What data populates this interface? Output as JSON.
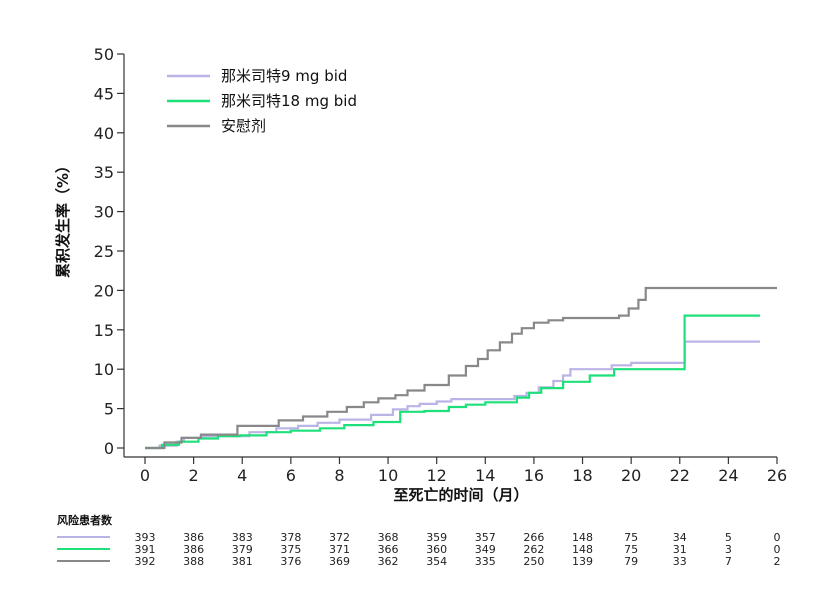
{
  "chart_data": {
    "type": "line",
    "step": true,
    "xlabel": "至死亡的时间（月）",
    "ylabel": "累积发生率（%）",
    "xlim": [
      0,
      26
    ],
    "ylim": [
      0,
      50
    ],
    "xticks": [
      0,
      2,
      4,
      6,
      8,
      10,
      12,
      14,
      16,
      18,
      20,
      22,
      24,
      26
    ],
    "yticks": [
      0,
      5,
      10,
      15,
      20,
      25,
      30,
      35,
      40,
      45,
      50
    ],
    "grid": false,
    "legend_position": "top-left",
    "series": [
      {
        "name": "那米司特9 mg bid",
        "color": "#b9b4e6",
        "x": [
          0,
          0.6,
          1.3,
          1.6,
          2.4,
          3.8,
          4.3,
          5.4,
          6.3,
          7.1,
          8.0,
          9.3,
          10.2,
          10.8,
          11.3,
          12.0,
          12.6,
          13.2,
          14.0,
          14.6,
          15.2,
          15.7,
          16.2,
          16.8,
          17.2,
          17.5,
          18.5,
          19.2,
          20.0,
          21.0,
          22.0,
          22.2,
          25.3
        ],
        "y": [
          0,
          0.3,
          0.8,
          1.3,
          1.5,
          1.5,
          2.0,
          2.5,
          2.8,
          3.2,
          3.6,
          4.2,
          4.9,
          5.3,
          5.6,
          5.9,
          6.2,
          6.2,
          6.2,
          6.2,
          6.6,
          7.0,
          7.7,
          8.5,
          9.2,
          10.0,
          10.0,
          10.5,
          10.8,
          10.8,
          10.8,
          13.5,
          13.5
        ]
      },
      {
        "name": "那米司特18 mg bid",
        "color": "#1ee07a",
        "x": [
          0,
          0.7,
          1.4,
          2.2,
          3.0,
          3.9,
          5.0,
          6.0,
          7.2,
          8.2,
          9.4,
          10.5,
          11.5,
          12.5,
          13.2,
          14.0,
          15.3,
          15.8,
          16.3,
          17.2,
          18.3,
          19.3,
          20.0,
          22.2,
          25.3
        ],
        "y": [
          0,
          0.4,
          0.8,
          1.2,
          1.5,
          1.6,
          2.0,
          2.2,
          2.5,
          2.9,
          3.3,
          4.6,
          4.7,
          5.2,
          5.5,
          5.8,
          6.4,
          7.0,
          7.6,
          8.4,
          9.2,
          10.0,
          10.0,
          16.8,
          16.8
        ]
      },
      {
        "name": "安慰剂",
        "color": "#888888",
        "x": [
          0,
          0.8,
          1.5,
          2.3,
          3.8,
          4.2,
          5.5,
          6.5,
          7.5,
          8.3,
          9.0,
          9.6,
          10.3,
          10.8,
          11.5,
          12.5,
          13.2,
          13.7,
          14.1,
          14.6,
          15.1,
          15.5,
          16.0,
          16.6,
          17.2,
          18.2,
          19.5,
          19.9,
          20.3,
          20.6,
          22.0,
          26.0
        ],
        "y": [
          0,
          0.7,
          1.3,
          1.7,
          2.8,
          2.8,
          3.5,
          4.0,
          4.6,
          5.2,
          5.8,
          6.3,
          6.7,
          7.3,
          8.0,
          9.2,
          10.4,
          11.3,
          12.4,
          13.4,
          14.5,
          15.2,
          15.9,
          16.2,
          16.5,
          16.5,
          16.8,
          17.7,
          18.8,
          20.3,
          20.3,
          20.3
        ]
      }
    ],
    "risk_table": {
      "title": "风险患者数",
      "times": [
        0,
        2,
        4,
        6,
        8,
        10,
        12,
        14,
        16,
        18,
        20,
        22,
        24,
        26
      ],
      "rows": [
        {
          "color": "#b9b4e6",
          "values": [
            "393",
            "386",
            "383",
            "378",
            "372",
            "368",
            "359",
            "357",
            "266",
            "148",
            "75",
            "34",
            "5",
            "0"
          ]
        },
        {
          "color": "#1ee07a",
          "values": [
            "391",
            "386",
            "379",
            "375",
            "371",
            "366",
            "360",
            "349",
            "262",
            "148",
            "75",
            "31",
            "3",
            "0"
          ]
        },
        {
          "color": "#888888",
          "values": [
            "392",
            "388",
            "381",
            "376",
            "369",
            "362",
            "354",
            "335",
            "250",
            "139",
            "79",
            "33",
            "7",
            "2"
          ]
        }
      ]
    }
  }
}
